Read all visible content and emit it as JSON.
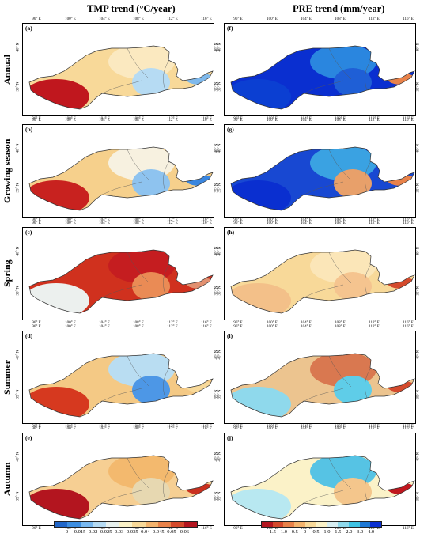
{
  "titles": {
    "tmp": "TMP trend (°C/year)",
    "pre": "PRE trend (mm/year)"
  },
  "rows": [
    {
      "label": "Annual",
      "left_panel": "(a)",
      "right_panel": "(f)"
    },
    {
      "label": "Growing season",
      "left_panel": "(b)",
      "right_panel": "(g)"
    },
    {
      "label": "Spring",
      "left_panel": "(c)",
      "right_panel": "(h)"
    },
    {
      "label": "Summer",
      "left_panel": "(d)",
      "right_panel": "(i)"
    },
    {
      "label": "Autumn",
      "left_panel": "(e)",
      "right_panel": "(j)"
    }
  ],
  "lon_ticks": [
    "96° E",
    "100° E",
    "104° E",
    "108° E",
    "112° E",
    "116° E"
  ],
  "lat_ticks": [
    "35° N",
    "40° N"
  ],
  "tmp_legend": {
    "ticks": [
      "0",
      "0.015",
      "0.02",
      "0.025",
      "0.03",
      "0.035",
      "0.04",
      "0.045",
      "0.05",
      "0.06"
    ],
    "colors": [
      "#2166c8",
      "#3e8ee0",
      "#79b8ef",
      "#b6dbf3",
      "#e8f1ee",
      "#fbf2c8",
      "#f8d999",
      "#f3b36d",
      "#e8824a",
      "#d44a2c",
      "#b3151f"
    ]
  },
  "pre_legend": {
    "ticks": [
      "-1.5",
      "-1.0",
      "-0.5",
      "0",
      "0.5",
      "1.0",
      "1.5",
      "2.0",
      "3.0",
      "4.0"
    ],
    "colors": [
      "#b3151f",
      "#d44a2c",
      "#e8824a",
      "#f3b36d",
      "#f8d999",
      "#fbf2c8",
      "#d7eef2",
      "#8fd9ec",
      "#3fc3e4",
      "#1f79d6",
      "#0a2fd0"
    ]
  },
  "map_colors": {
    "tmp": [
      [
        "#f8d999",
        "#c0171e",
        "#fbe9c0",
        "#b6dbf3",
        "#7fb9ec"
      ],
      [
        "#f6d08c",
        "#c8221f",
        "#f7f1e0",
        "#8ec3ef",
        "#3a86df"
      ],
      [
        "#d0311e",
        "#ecf0ee",
        "#c51d20",
        "#ea8b55",
        "#e29070"
      ],
      [
        "#f4c985",
        "#d6391f",
        "#b9ddf2",
        "#4d97e6",
        "#f8d999"
      ],
      [
        "#f6cf93",
        "#b3151f",
        "#f3b96e",
        "#e7d8b1",
        "#c9301f"
      ]
    ],
    "pre": [
      [
        "#0a2fd0",
        "#0b3fd2",
        "#2a86df",
        "#1f5fd6",
        "#e8824a"
      ],
      [
        "#1848d2",
        "#0a2fd0",
        "#3aa2e2",
        "#e8a06a",
        "#e8824a"
      ],
      [
        "#f8d999",
        "#f3c089",
        "#fbe6b8",
        "#f5c48f",
        "#d44a2c"
      ],
      [
        "#ecc48f",
        "#8fd9ec",
        "#d97850",
        "#5fcde8",
        "#d44a2c"
      ],
      [
        "#fbf2c8",
        "#b8e8f1",
        "#56c3e4",
        "#f4c68c",
        "#c0171e"
      ]
    ]
  }
}
